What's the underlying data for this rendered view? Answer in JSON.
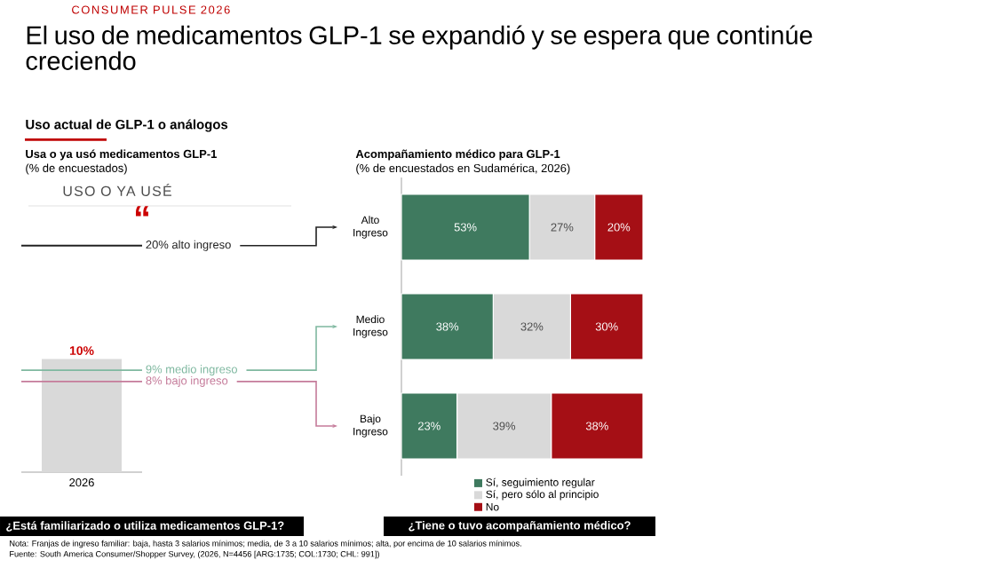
{
  "chart_data": [
    {
      "type": "bar",
      "title": "Usa o ya usó medicamentos GLP-1",
      "subtitle": "(% de encuestados)",
      "categories": [
        "2026"
      ],
      "values": [
        10
      ],
      "value_labels": [
        "10%"
      ],
      "color": "#d9d9d9",
      "tick_labels": "x",
      "ref_lines": [
        {
          "axis": "y",
          "value": 20,
          "label": "20% alto ingreso",
          "color": "#222222"
        },
        {
          "axis": "y",
          "value": 9,
          "label": "9% medio ingreso",
          "color": "#7fb8a0"
        },
        {
          "axis": "y",
          "value": 8,
          "label": "8% bajo ingreso",
          "color": "#c57b9a"
        }
      ],
      "annotations": [
        "CONSUMER PULSE 2026",
        "El uso de medicamentos GLP-1 se expandió y se espera que continúe creciendo",
        "Uso actual de GLP-1 o análogos",
        "USO O YA USÉ",
        "“",
        "¿Está familiarizado o utiliza medicamentos GLP-1?",
        "Nota: Franjas de ingreso familiar: baja, hasta 3 salarios mínimos; media, de 3 a 10 salarios mínimos; alta, por encima de 10 salarios mínimos.",
        "Fuente: South America Consumer/Shopper Survey, (2026, N=4456 [ARG:1735; COL:1730; CHL: 991])"
      ]
    },
    {
      "type": "bar",
      "orientation": "horizontal",
      "stacked": true,
      "title": "Acompañamiento médico para GLP-1",
      "subtitle": "(% de encuestados en Sudamérica, 2026)",
      "categories": [
        "Alto Ingreso",
        "Medio Ingreso",
        "Bajo Ingreso"
      ],
      "tick_labels": "y",
      "legend": "bottom",
      "series": [
        {
          "name": "Sí, seguimiento regular",
          "color": "#3f7a5f",
          "values": [
            53,
            38,
            23
          ],
          "value_labels": [
            "53%",
            "38%",
            "23%"
          ]
        },
        {
          "name": "Sí, pero sólo al principio",
          "color": "#d9d9d9",
          "values": [
            27,
            32,
            39
          ],
          "value_labels": [
            "27%",
            "32%",
            "39%"
          ]
        },
        {
          "name": "No",
          "color": "#a50f15",
          "values": [
            20,
            30,
            38
          ],
          "value_labels": [
            "20%",
            "30%",
            "38%"
          ]
        }
      ],
      "annotations": [
        "¿Tiene o tuvo acompañamiento médico?"
      ]
    }
  ]
}
